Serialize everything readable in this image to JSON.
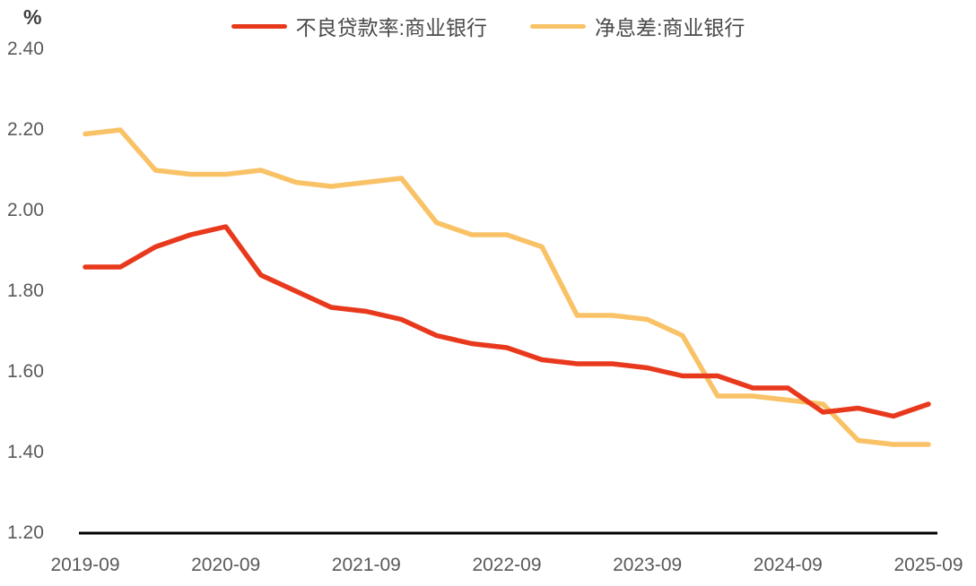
{
  "chart": {
    "y_axis_unit": "%",
    "background_color": "#ffffff",
    "axis_line_color": "#000000",
    "tick_text_color": "#595959",
    "legend_text_color": "#4a4a4a"
  },
  "legend": {
    "items": [
      {
        "label": "不良贷款率:商业银行",
        "color": "#e8391d"
      },
      {
        "label": "净息差:商业银行",
        "color": "#f9c266"
      }
    ]
  },
  "chart_data": {
    "type": "line",
    "title": "",
    "xlabel": "",
    "ylabel": "%",
    "ylim": [
      1.2,
      2.4
    ],
    "y_tick_labels": [
      "2.40",
      "2.20",
      "2.00",
      "1.80",
      "1.60",
      "1.40",
      "1.20"
    ],
    "y_tick_values": [
      2.4,
      2.2,
      2.0,
      1.8,
      1.6,
      1.4,
      1.2
    ],
    "x_axis_tick_labels": [
      "2019-09",
      "2020-09",
      "2021-09",
      "2022-09",
      "2023-09",
      "2024-09",
      "2025-09"
    ],
    "grid": false,
    "legend_position": "top-center",
    "x": [
      "2019-09",
      "2019-12",
      "2020-03",
      "2020-06",
      "2020-09",
      "2020-12",
      "2021-03",
      "2021-06",
      "2021-09",
      "2021-12",
      "2022-03",
      "2022-06",
      "2022-09",
      "2022-12",
      "2023-03",
      "2023-06",
      "2023-09",
      "2023-12",
      "2024-03",
      "2024-06",
      "2024-09",
      "2024-12",
      "2025-03",
      "2025-06",
      "2025-09"
    ],
    "series": [
      {
        "name": "不良贷款率:商业银行",
        "color": "#e8391d",
        "values": [
          1.86,
          1.86,
          1.91,
          1.94,
          1.96,
          1.84,
          1.8,
          1.76,
          1.75,
          1.73,
          1.69,
          1.67,
          1.66,
          1.63,
          1.62,
          1.62,
          1.61,
          1.59,
          1.59,
          1.56,
          1.56,
          1.5,
          1.51,
          1.49,
          1.52
        ]
      },
      {
        "name": "净息差:商业银行",
        "color": "#f9c266",
        "values": [
          2.19,
          2.2,
          2.1,
          2.09,
          2.09,
          2.1,
          2.07,
          2.06,
          2.07,
          2.08,
          1.97,
          1.94,
          1.94,
          1.91,
          1.74,
          1.74,
          1.73,
          1.69,
          1.54,
          1.54,
          1.53,
          1.52,
          1.43,
          1.42,
          1.42
        ]
      }
    ]
  }
}
